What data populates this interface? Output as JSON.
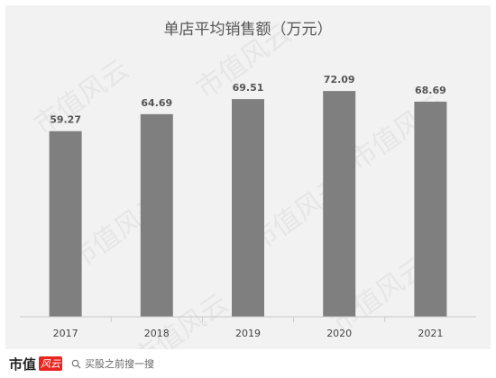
{
  "chart_data": {
    "type": "bar",
    "title": "单店平均销售额（万元）",
    "categories": [
      "2017",
      "2018",
      "2019",
      "2020",
      "2021"
    ],
    "values": [
      59.27,
      64.69,
      69.51,
      72.09,
      68.69
    ],
    "value_labels": [
      "59.27",
      "64.69",
      "69.51",
      "72.09",
      "68.69"
    ],
    "ylim": [
      0,
      80
    ],
    "grid": false,
    "bar_color": "#7f7f7f",
    "background_color": "#f2f2f2"
  },
  "watermark": {
    "text": "市值风云"
  },
  "footer": {
    "brand": "市值",
    "brand_mark": "风云",
    "search_hint": "买股之前搜一搜"
  }
}
